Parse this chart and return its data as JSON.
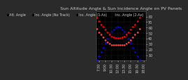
{
  "title": "Sun Altitude Angle & Sun Incidence Angle on PV Panels",
  "legend_labels": [
    "Alt. Angle",
    "Inc. Angle (No Track)",
    "Inc. Angle (1-Ax)",
    "Inc. Angle (2-Ax)"
  ],
  "legend_colors": [
    "#0000ff",
    "#ff0000",
    "#ff3333",
    "#cc0000"
  ],
  "bg_color": "#000000",
  "plot_bg": "#000000",
  "fig_bg": "#2a2a2a",
  "ylim": [
    0,
    90
  ],
  "ytick_vals": [
    10,
    20,
    30,
    40,
    50,
    60,
    70,
    80
  ],
  "grid_color": "#555555",
  "time_hours": [
    7.0,
    7.5,
    8.0,
    8.5,
    9.0,
    9.5,
    10.0,
    10.5,
    11.0,
    11.5,
    12.0,
    12.5,
    13.0,
    13.5,
    14.0,
    14.5,
    15.0,
    15.5,
    16.0,
    16.5,
    17.0,
    17.5
  ],
  "altitude": [
    2,
    8,
    16,
    24,
    32,
    40,
    47,
    53,
    57,
    60,
    61,
    60,
    57,
    53,
    47,
    40,
    32,
    24,
    16,
    8,
    2,
    0
  ],
  "incidence_notrack": [
    78,
    72,
    66,
    61,
    56,
    51,
    47,
    44,
    42,
    41,
    41,
    41,
    42,
    44,
    47,
    51,
    56,
    61,
    66,
    72,
    78,
    0
  ],
  "incidence_1ax": [
    58,
    52,
    47,
    42,
    37,
    34,
    31,
    29,
    28,
    28,
    28,
    28,
    28,
    29,
    31,
    34,
    37,
    42,
    47,
    52,
    58,
    0
  ],
  "xlim": [
    6.8,
    18.5
  ],
  "xtick_positions": [
    7.5,
    9.0,
    10.5,
    12.0,
    13.5,
    15.0,
    16.5,
    18.0
  ],
  "xtick_labels": [
    "7:30",
    "9:00",
    "10:30",
    "12:00",
    "13:30",
    "15:00",
    "16:30",
    "18:00"
  ],
  "title_fontsize": 4.5,
  "tick_fontsize": 3.5,
  "legend_fontsize": 3.5,
  "dot_size": 1.8,
  "text_color": "#cccccc",
  "yaxis_label_color": "#aaaaaa"
}
